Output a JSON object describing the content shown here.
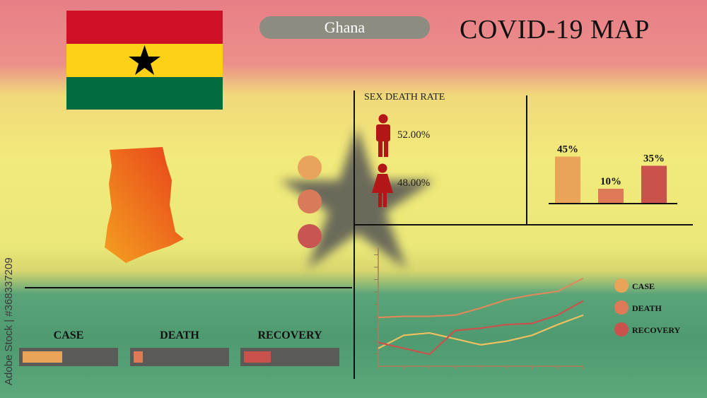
{
  "header": {
    "country": "Ghana",
    "title": "COVID-19 MAP"
  },
  "colors": {
    "case": "#eaa457",
    "death": "#de7a55",
    "recovery": "#c9534c",
    "flag_red": "#ce1126",
    "flag_yellow": "#fcd116",
    "flag_green": "#006b3f",
    "star": "#000000"
  },
  "icons": {
    "flag": "ghana-flag",
    "map": "ghana-map",
    "male": "male-icon",
    "female": "female-icon"
  },
  "sex_death_rate": {
    "title": "SEX DEATH RATE",
    "male": "52.00%",
    "female": "48.00%"
  },
  "stats": [
    {
      "label": "CASE",
      "progress": 0.43
    },
    {
      "label": "DEATH",
      "progress": 0.1
    },
    {
      "label": "RECOVERY",
      "progress": 0.29
    }
  ],
  "watermark": "Adobe Stock | #368337209",
  "chart_data": [
    {
      "type": "bar",
      "categories": [
        "CASE",
        "DEATH",
        "RECOVERY"
      ],
      "values": [
        45,
        10,
        35
      ],
      "data_labels": [
        "45%",
        "10%",
        "35%"
      ]
    },
    {
      "type": "line",
      "x": [
        0,
        1,
        2,
        3,
        4,
        5,
        6,
        7,
        8
      ],
      "grid": false,
      "legend_placement": "right",
      "legend": [
        "CASE",
        "DEATH",
        "RECOVERY"
      ],
      "series": [
        {
          "name": "CASE",
          "values": [
            15,
            26,
            28,
            23,
            18,
            21,
            26,
            35,
            43
          ]
        },
        {
          "name": "DEATH",
          "values": [
            41,
            42,
            42,
            43,
            49,
            56,
            60,
            63,
            74
          ]
        },
        {
          "name": "RECOVERY",
          "values": [
            20,
            15,
            10,
            30,
            32,
            35,
            36,
            43,
            55
          ]
        }
      ]
    }
  ]
}
